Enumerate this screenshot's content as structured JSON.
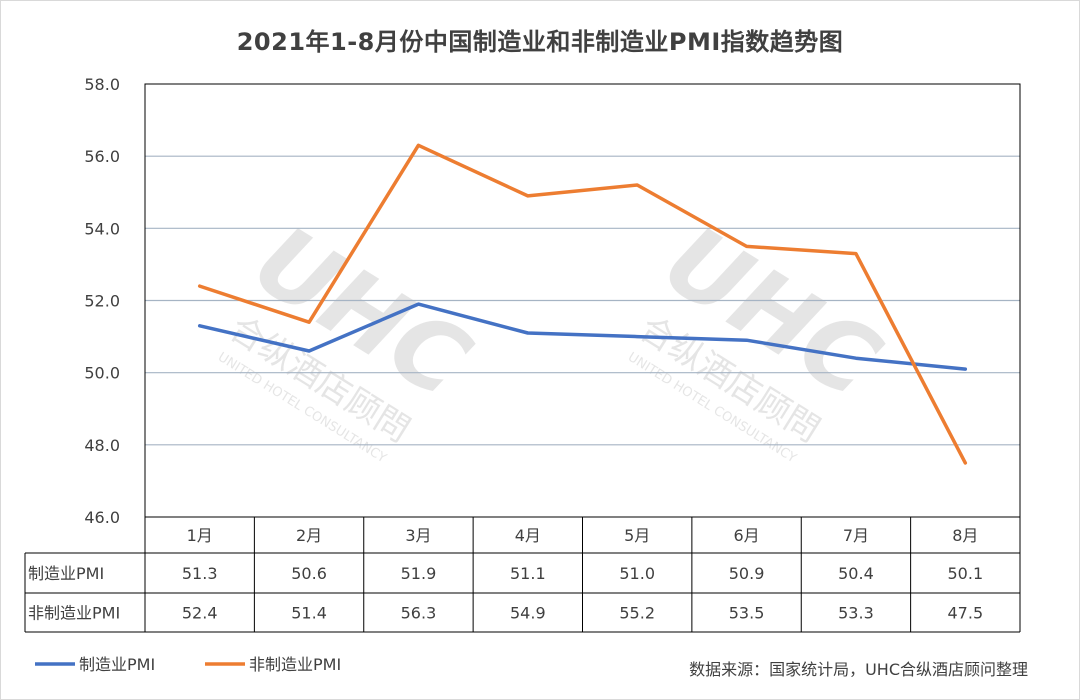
{
  "chart_data": {
    "type": "line",
    "title": "2021年1-8月份中国制造业和非制造业PMI指数趋势图",
    "categories": [
      "1月",
      "2月",
      "3月",
      "4月",
      "5月",
      "6月",
      "7月",
      "8月"
    ],
    "series": [
      {
        "name": "制造业PMI",
        "color": "#4472c4",
        "values": [
          51.3,
          50.6,
          51.9,
          51.1,
          51.0,
          50.9,
          50.4,
          50.1
        ]
      },
      {
        "name": "非制造业PMI",
        "color": "#ed7d31",
        "values": [
          52.4,
          51.4,
          56.3,
          54.9,
          55.2,
          53.5,
          53.3,
          47.5
        ]
      }
    ],
    "ylim": [
      46.0,
      58.0
    ],
    "yticks": [
      "46.0",
      "48.0",
      "50.0",
      "52.0",
      "54.0",
      "56.0",
      "58.0"
    ],
    "grid": true,
    "legend": "bottom-left",
    "data_table": true
  },
  "watermark": {
    "logo": "UHC",
    "name_cn": "合纵酒店顾問",
    "name_en": "UNITED HOTEL CONSULTANCY"
  },
  "source_text": "数据来源：国家统计局，UHC合纵酒店顾问整理"
}
